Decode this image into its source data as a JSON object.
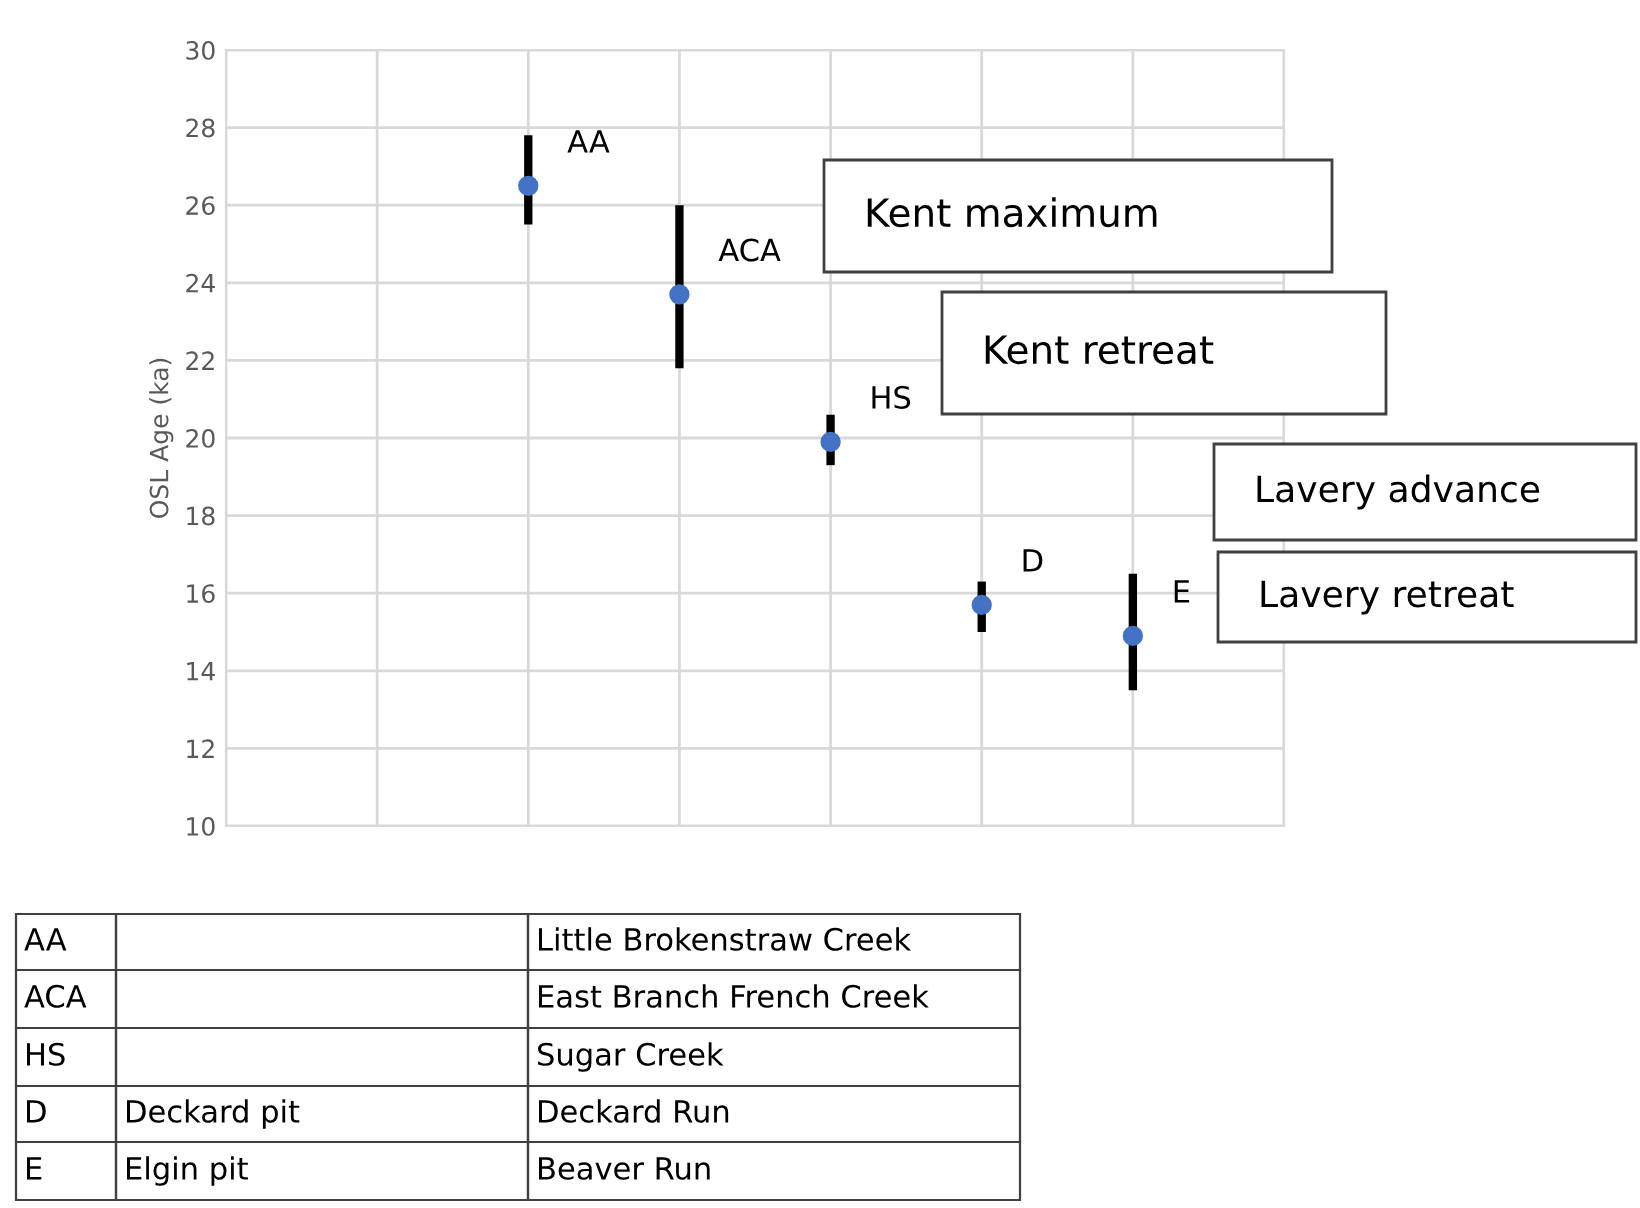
{
  "chart_data": {
    "type": "scatter",
    "ylabel": "OSL Age (ka)",
    "categories": [
      null,
      null,
      null,
      null,
      null,
      null,
      null,
      null
    ],
    "series": [
      {
        "color": "#4472c4",
        "values": [
          null,
          null,
          26.5,
          23.7,
          19.9,
          15.7,
          14.9,
          null
        ],
        "errors": [
          null,
          null,
          [
            25.5,
            27.8
          ],
          [
            21.8,
            26.0
          ],
          [
            19.3,
            20.6
          ],
          [
            15.0,
            16.3
          ],
          [
            13.5,
            16.5
          ],
          null
        ]
      }
    ],
    "ylim": [
      10,
      30
    ],
    "yticks": [
      10,
      12,
      14,
      16,
      18,
      20,
      22,
      24,
      26,
      28,
      30
    ],
    "grid": true,
    "marker": "circle",
    "tick_labels": "y",
    "annotations": [
      "AA",
      "ACA",
      "HS",
      "D",
      "E",
      "Kent maximum",
      "Kent retreat",
      "Lavery advance",
      "Lavery retreat",
      "AA",
      "ACA",
      "HS",
      "D",
      "E",
      "Little Brokenstraw Creek",
      "East Branch French Creek",
      "Sugar Creek",
      "Deckard Run",
      "Beaver Run",
      "Deckard pit",
      "Elgin pit"
    ]
  }
}
